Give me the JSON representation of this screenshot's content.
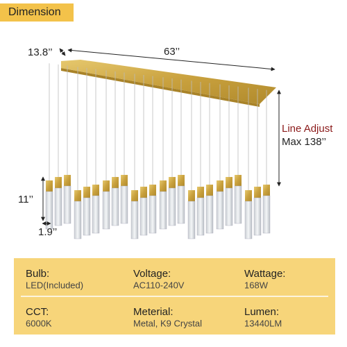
{
  "header": {
    "title": "Dimension"
  },
  "dimensions": {
    "depth": "13.8’’",
    "length": "63’’",
    "line_adjust": "Line Adjust",
    "max_length": "Max 138’’",
    "height": "11’’",
    "diameter": "1.9’’"
  },
  "specs": {
    "rows": [
      [
        {
          "label": "Bulb:",
          "value": "LED(Included)"
        },
        {
          "label": "Voltage:",
          "value": "AC110-240V"
        },
        {
          "label": "Wattage:",
          "value": "168W"
        }
      ],
      [
        {
          "label": "CCT:",
          "value": "6000K"
        },
        {
          "label": "Meterial:",
          "value": "Metal, K9 Crystal"
        },
        {
          "label": "Lumen:",
          "value": "13440LM"
        }
      ]
    ]
  }
}
